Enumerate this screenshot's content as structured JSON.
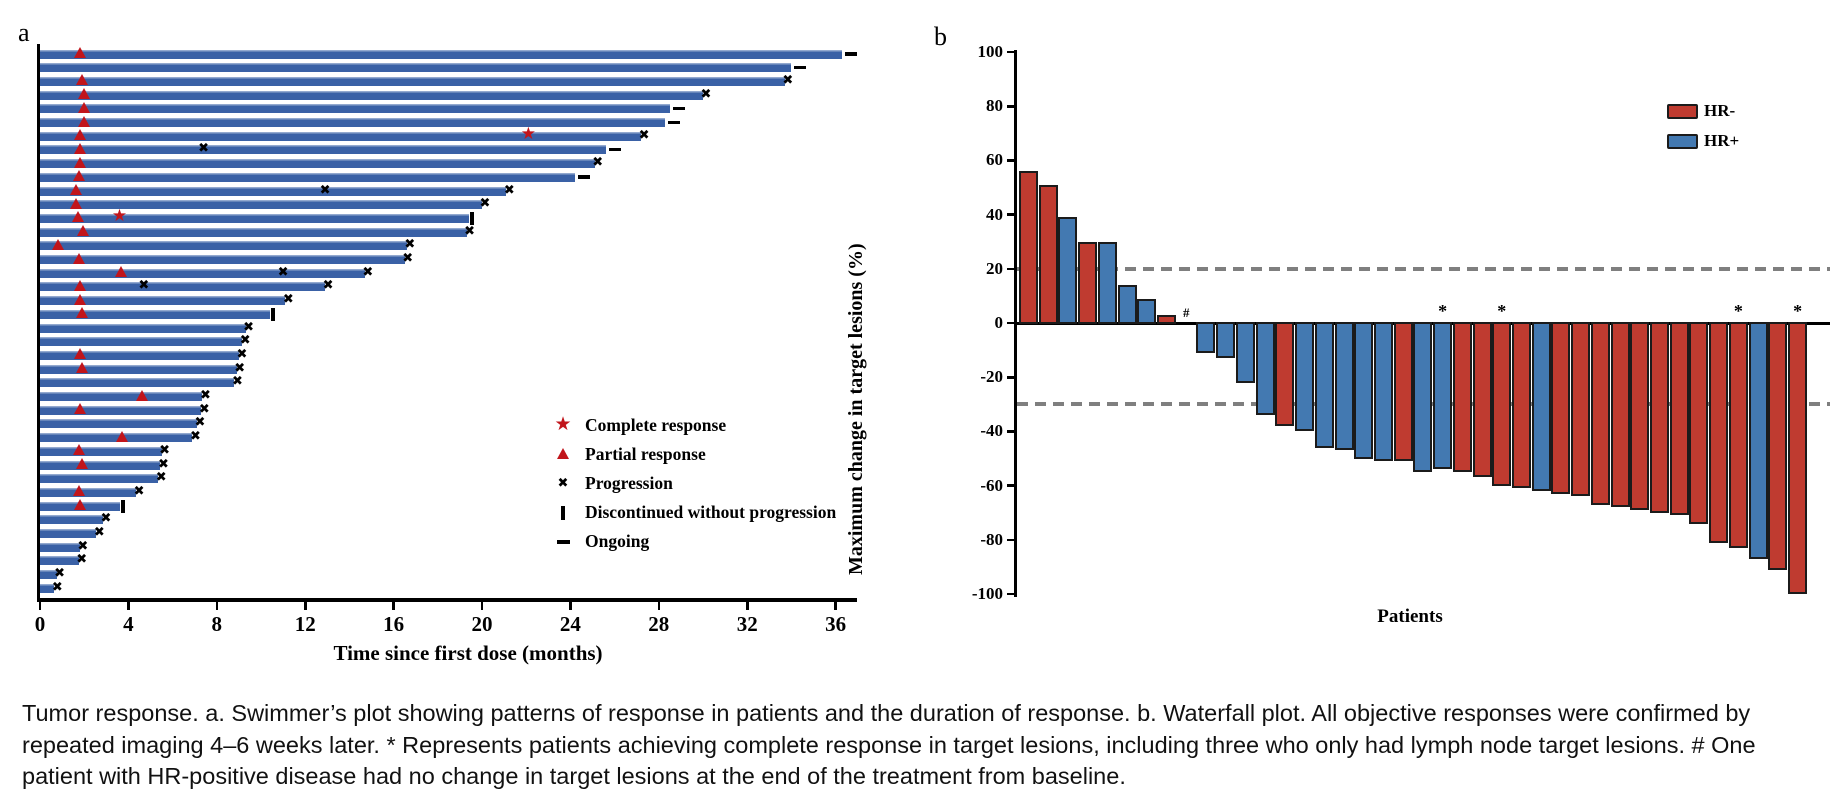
{
  "figure": {
    "caption": "Tumor response. a. Swimmer’s plot showing patterns of response in patients and the duration of response. b. Waterfall plot. All objective responses were confirmed by repeated imaging 4–6 weeks later. * Represents patients achieving complete response in target lesions, including three who only had lymph node target lesions. # One patient with HR-positive disease had no change in target lesions at the end of the treatment from baseline."
  },
  "colors": {
    "swimmer_bar": "#3a61a6",
    "marker_red": "#c1151b",
    "hr_neg": "#bf3b30",
    "hr_pos": "#4379b1",
    "bar_outline": "#1b1b1b",
    "dashed_gray": "#7f7f7f",
    "axis_black": "#000000"
  },
  "chart_data": [
    {
      "type": "swimmer",
      "panel_label": "a",
      "xlabel": "Time since first dose (months)",
      "xticks": [
        0,
        4,
        8,
        12,
        16,
        20,
        24,
        28,
        32,
        36
      ],
      "xlim": [
        0,
        36.9
      ],
      "legend": [
        {
          "symbol": "complete-response-star",
          "label": "Complete response"
        },
        {
          "symbol": "partial-response-triangle",
          "label": "Partial response"
        },
        {
          "symbol": "progression-x",
          "label": "Progression"
        },
        {
          "symbol": "discontinued-bar",
          "label": "Discontinued without progression"
        },
        {
          "symbol": "ongoing-dash",
          "label": "Ongoing"
        }
      ],
      "patients": [
        {
          "duration": 36.3,
          "end": "ongoing",
          "partial_response": 1.8
        },
        {
          "duration": 34.0,
          "end": "ongoing"
        },
        {
          "duration": 33.7,
          "end": "progression",
          "partial_response": 1.9
        },
        {
          "duration": 30.0,
          "end": "progression",
          "partial_response": 2.0
        },
        {
          "duration": 28.5,
          "end": "ongoing",
          "partial_response": 2.0
        },
        {
          "duration": 28.3,
          "end": "ongoing",
          "partial_response": 2.0
        },
        {
          "duration": 27.2,
          "end": "progression",
          "partial_response": 1.8,
          "complete_response": 22.1
        },
        {
          "duration": 25.6,
          "end": "ongoing",
          "partial_response": 1.8,
          "progression_events": [
            7.4
          ]
        },
        {
          "duration": 25.1,
          "end": "progression",
          "partial_response": 1.8
        },
        {
          "duration": 24.2,
          "end": "ongoing",
          "partial_response": 1.75
        },
        {
          "duration": 21.1,
          "end": "progression",
          "partial_response": 1.65,
          "progression_events": [
            12.9
          ]
        },
        {
          "duration": 20.0,
          "end": "progression",
          "partial_response": 1.65
        },
        {
          "duration": 19.4,
          "end": "discontinued",
          "partial_response": 1.7,
          "complete_response": 3.6
        },
        {
          "duration": 19.3,
          "end": "progression",
          "partial_response": 1.95
        },
        {
          "duration": 16.6,
          "end": "progression",
          "partial_response": 0.8
        },
        {
          "duration": 16.5,
          "end": "progression",
          "partial_response": 1.75
        },
        {
          "duration": 14.7,
          "end": "progression",
          "partial_response": 3.65,
          "progression_events": [
            11.0
          ]
        },
        {
          "duration": 12.9,
          "end": "progression",
          "partial_response": 1.8,
          "progression_events": [
            4.7
          ]
        },
        {
          "duration": 11.1,
          "end": "progression",
          "partial_response": 1.8
        },
        {
          "duration": 10.4,
          "end": "discontinued",
          "partial_response": 1.9
        },
        {
          "duration": 9.3,
          "end": "progression"
        },
        {
          "duration": 9.15,
          "end": "progression"
        },
        {
          "duration": 9.0,
          "end": "progression",
          "partial_response": 1.8
        },
        {
          "duration": 8.9,
          "end": "progression",
          "partial_response": 1.9
        },
        {
          "duration": 8.8,
          "end": "progression"
        },
        {
          "duration": 7.35,
          "end": "progression",
          "partial_response": 4.6
        },
        {
          "duration": 7.3,
          "end": "progression",
          "partial_response": 1.8
        },
        {
          "duration": 7.1,
          "end": "progression"
        },
        {
          "duration": 6.9,
          "end": "progression",
          "partial_response": 3.7
        },
        {
          "duration": 5.5,
          "end": "progression",
          "partial_response": 1.75
        },
        {
          "duration": 5.45,
          "end": "progression",
          "partial_response": 1.9
        },
        {
          "duration": 5.35,
          "end": "progression"
        },
        {
          "duration": 4.35,
          "end": "progression",
          "partial_response": 1.75
        },
        {
          "duration": 3.6,
          "end": "discontinued",
          "partial_response": 1.8
        },
        {
          "duration": 2.85,
          "end": "progression"
        },
        {
          "duration": 2.55,
          "end": "progression"
        },
        {
          "duration": 1.8,
          "end": "progression"
        },
        {
          "duration": 1.75,
          "end": "progression"
        },
        {
          "duration": 0.75,
          "end": "progression"
        },
        {
          "duration": 0.65,
          "end": "progression"
        }
      ]
    },
    {
      "type": "waterfall",
      "panel_label": "b",
      "ylabel": "Maximum change in target lesions (%)",
      "xlabel": "Patients",
      "yticks": [
        100,
        80,
        60,
        40,
        20,
        0,
        -20,
        -40,
        -60,
        -80,
        -100
      ],
      "ylim": [
        -100,
        100
      ],
      "reference_lines": [
        20,
        -30
      ],
      "legend": [
        {
          "label": "HR-",
          "color_key": "hr_neg"
        },
        {
          "label": "HR+",
          "color_key": "hr_pos"
        }
      ],
      "bars": [
        {
          "value": 56,
          "hr": "HR-"
        },
        {
          "value": 51,
          "hr": "HR-"
        },
        {
          "value": 39,
          "hr": "HR+"
        },
        {
          "value": 30,
          "hr": "HR-"
        },
        {
          "value": 30,
          "hr": "HR+"
        },
        {
          "value": 14,
          "hr": "HR+"
        },
        {
          "value": 9,
          "hr": "HR+"
        },
        {
          "value": 3,
          "hr": "HR-"
        },
        {
          "value": 0,
          "hr": "HR+",
          "annotation": "#"
        },
        {
          "value": -11,
          "hr": "HR+"
        },
        {
          "value": -13,
          "hr": "HR+"
        },
        {
          "value": -22,
          "hr": "HR+"
        },
        {
          "value": -34,
          "hr": "HR+"
        },
        {
          "value": -38,
          "hr": "HR-"
        },
        {
          "value": -40,
          "hr": "HR+"
        },
        {
          "value": -46,
          "hr": "HR+"
        },
        {
          "value": -47,
          "hr": "HR+"
        },
        {
          "value": -50,
          "hr": "HR+"
        },
        {
          "value": -51,
          "hr": "HR+"
        },
        {
          "value": -51,
          "hr": "HR-"
        },
        {
          "value": -55,
          "hr": "HR+"
        },
        {
          "value": -54,
          "hr": "HR+",
          "annotation": "*"
        },
        {
          "value": -55,
          "hr": "HR-"
        },
        {
          "value": -57,
          "hr": "HR-"
        },
        {
          "value": -60,
          "hr": "HR-",
          "annotation": "*"
        },
        {
          "value": -61,
          "hr": "HR-"
        },
        {
          "value": -62,
          "hr": "HR+"
        },
        {
          "value": -63,
          "hr": "HR-"
        },
        {
          "value": -64,
          "hr": "HR-"
        },
        {
          "value": -67,
          "hr": "HR-"
        },
        {
          "value": -68,
          "hr": "HR-"
        },
        {
          "value": -69,
          "hr": "HR-"
        },
        {
          "value": -70,
          "hr": "HR-"
        },
        {
          "value": -71,
          "hr": "HR-"
        },
        {
          "value": -74,
          "hr": "HR-"
        },
        {
          "value": -81,
          "hr": "HR-"
        },
        {
          "value": -83,
          "hr": "HR-",
          "annotation": "*"
        },
        {
          "value": -87,
          "hr": "HR+"
        },
        {
          "value": -91,
          "hr": "HR-"
        },
        {
          "value": -100,
          "hr": "HR-",
          "annotation": "*"
        }
      ]
    }
  ]
}
